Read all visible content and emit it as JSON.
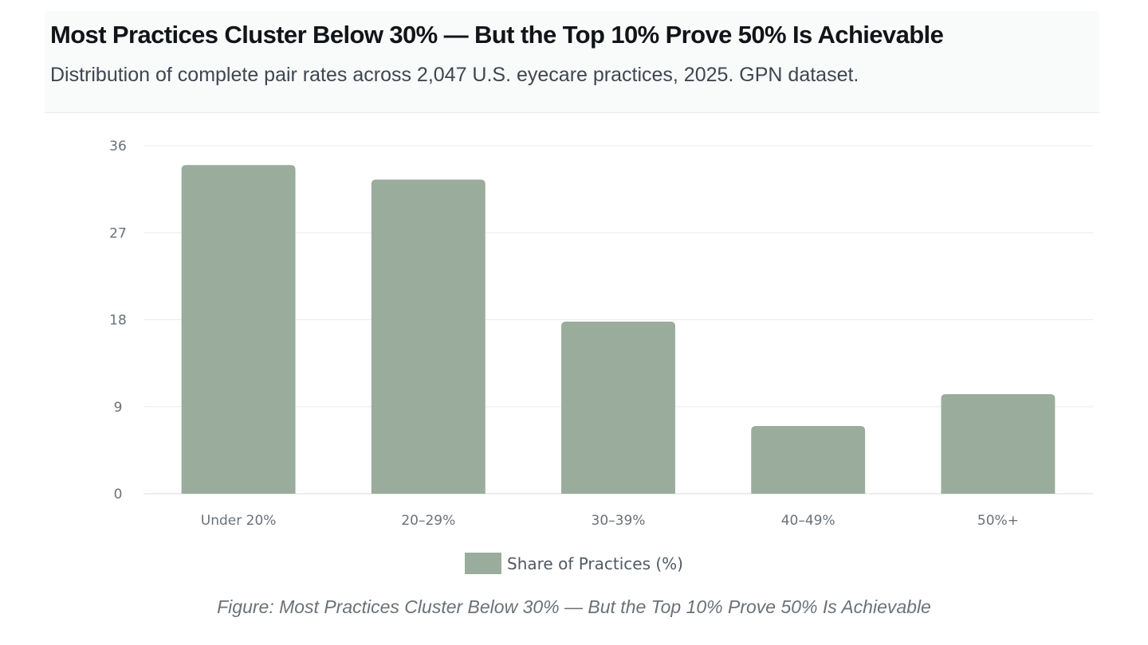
{
  "header": {
    "title": "Most Practices Cluster Below 30% — But the Top 10% Prove 50% Is Achievable",
    "subtitle": "Distribution of complete pair rates across 2,047 U.S. eyecare practices, 2025. GPN dataset."
  },
  "chart_data": {
    "type": "bar",
    "categories": [
      "Under 20%",
      "20–29%",
      "30–39%",
      "40–49%",
      "50%+"
    ],
    "series": [
      {
        "name": "Share of Practices (%)",
        "values": [
          34,
          32.5,
          17.8,
          7,
          10.3
        ],
        "color": "#9aad9c"
      }
    ],
    "ylim": [
      0,
      36
    ],
    "yticks": [
      "0",
      "9",
      "18",
      "27",
      "36"
    ],
    "grid": true,
    "legend": "bottom-center"
  },
  "legend": {
    "label": "Share of Practices (%)"
  },
  "caption": "Figure: Most Practices Cluster Below 30% — But the Top 10% Prove 50% Is Achievable"
}
